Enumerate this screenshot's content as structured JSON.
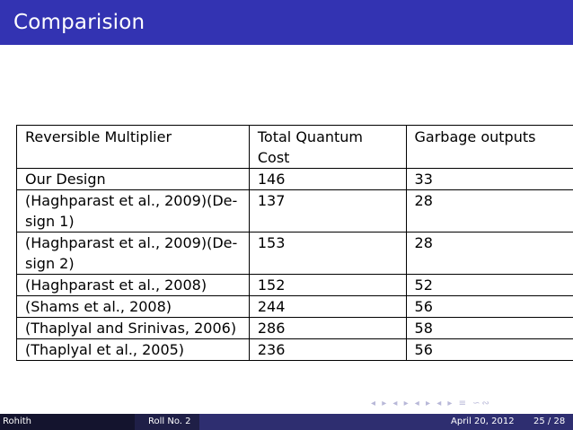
{
  "header": {
    "title": "Comparision"
  },
  "table": {
    "headers": [
      "Reversible Multiplier",
      "Total Quantum Cost",
      "Garbage outputs"
    ],
    "rows": [
      {
        "name_lines": [
          "Our Design"
        ],
        "cost": "146",
        "garbage": "33"
      },
      {
        "name_lines": [
          "(Haghparast et al., 2009)(De-",
          "sign 1)"
        ],
        "cost": "137",
        "garbage": "28"
      },
      {
        "name_lines": [
          "(Haghparast et al., 2009)(De-",
          "sign 2)"
        ],
        "cost": "153",
        "garbage": "28"
      },
      {
        "name_lines": [
          "(Haghparast et al., 2008)"
        ],
        "cost": "152",
        "garbage": "52"
      },
      {
        "name_lines": [
          "(Shams et al., 2008)"
        ],
        "cost": "244",
        "garbage": "56"
      },
      {
        "name_lines": [
          "(Thaplyal and Srinivas, 2006)"
        ],
        "cost": "286",
        "garbage": "58"
      },
      {
        "name_lines": [
          "(Thaplyal et al., 2005)"
        ],
        "cost": "236",
        "garbage": "56"
      }
    ]
  },
  "nav_symbols": "◂ ▸ ◂ ▸ ◂ ▸ ◂ ▸ ≡ ∽∾",
  "footer": {
    "author": "Rohith",
    "roll": "Roll No. 2",
    "date": "April 20, 2012",
    "page": "25 / 28"
  },
  "colors": {
    "header_bg": "#3333b2",
    "footer_dark": "#14142e",
    "footer_mid": "#1f1f47",
    "footer_light": "#2e2e70"
  }
}
